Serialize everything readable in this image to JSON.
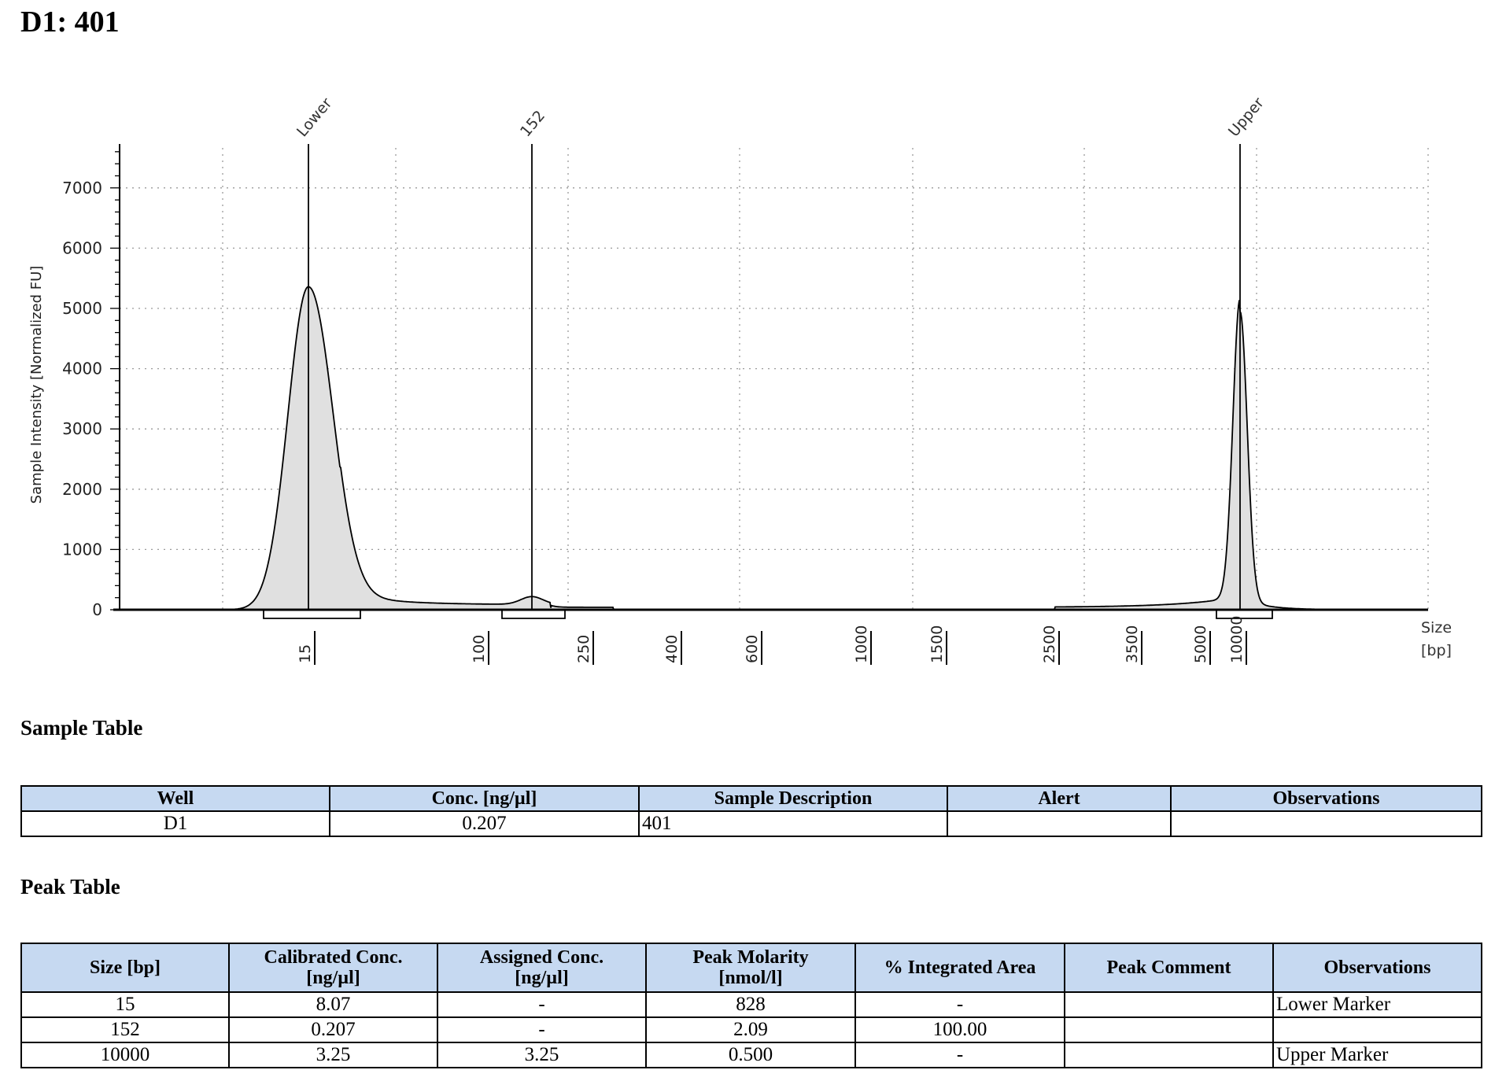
{
  "page_title": "D1: 401",
  "chart_data": {
    "type": "line",
    "title": "",
    "ylabel": "Sample Intensity [Normalized FU]",
    "xlabel_lines": [
      "Size",
      "[bp]"
    ],
    "ylim": [
      0,
      7800
    ],
    "y_ticks": [
      0,
      1000,
      2000,
      3000,
      4000,
      5000,
      6000,
      7000
    ],
    "x_ticks": [
      "15",
      "100",
      "250",
      "400",
      "600",
      "1000",
      "1500",
      "2500",
      "3500",
      "5000",
      "10000"
    ],
    "peak_labels": [
      "Lower",
      "152",
      "Upper"
    ],
    "grid": true,
    "fill_color": "#e0e0e0",
    "line_color": "#000000",
    "series": [
      {
        "values": [
          {
            "x": "15",
            "y": 5360,
            "label": "Lower"
          },
          {
            "x": "152",
            "y": 130,
            "label": "152"
          },
          {
            "x": "10000",
            "y": 4950,
            "label": "Upper"
          }
        ]
      }
    ]
  },
  "sample_table": {
    "title": "Sample Table",
    "headers": [
      "Well",
      "Conc. [ng/µl]",
      "Sample Description",
      "Alert",
      "Observations"
    ],
    "rows": [
      [
        "D1",
        "0.207",
        "401",
        "",
        ""
      ]
    ]
  },
  "peak_table": {
    "title": "Peak Table",
    "headers": [
      [
        "Size [bp]",
        ""
      ],
      [
        "Calibrated Conc.",
        "[ng/µl]"
      ],
      [
        "Assigned Conc.",
        "[ng/µl]"
      ],
      [
        "Peak Molarity",
        "[nmol/l]"
      ],
      [
        "% Integrated Area",
        ""
      ],
      [
        "Peak Comment",
        ""
      ],
      [
        "Observations",
        ""
      ]
    ],
    "rows": [
      [
        "15",
        "8.07",
        "-",
        "828",
        "-",
        "",
        "Lower Marker"
      ],
      [
        "152",
        "0.207",
        "-",
        "2.09",
        "100.00",
        "",
        ""
      ],
      [
        "10000",
        "3.25",
        "3.25",
        "0.500",
        "-",
        "",
        "Upper Marker"
      ]
    ]
  }
}
